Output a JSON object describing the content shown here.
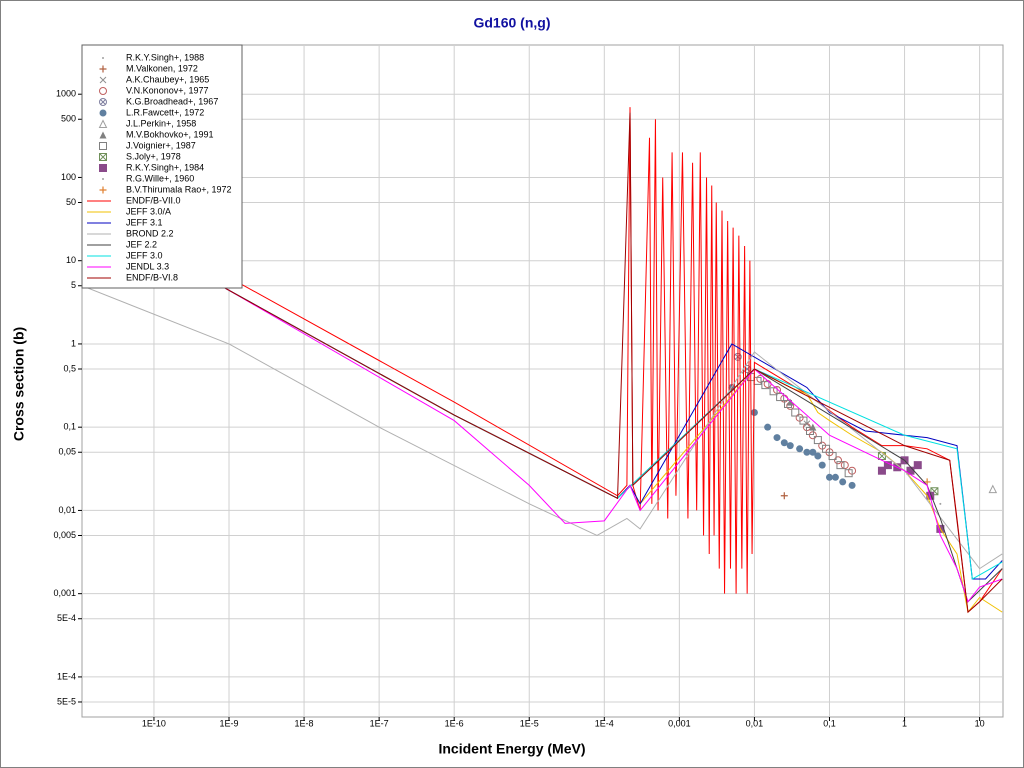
{
  "chart_data": {
    "type": "scatter",
    "title": "Gd160 (n,g)",
    "x_label": "Incident Energy (MeV)",
    "y_label": "Cross section (b)",
    "xscale": "log",
    "yscale": "log",
    "grid": true,
    "legend": "upper left",
    "xlim": [
      1.1e-11,
      20.5
    ],
    "ylim": [
      3.3e-05,
      3900
    ],
    "xticks": [
      {
        "value": 1e-10,
        "label": "1E-10"
      },
      {
        "value": 1e-09,
        "label": "1E-9"
      },
      {
        "value": 1e-08,
        "label": "1E-8"
      },
      {
        "value": 1e-07,
        "label": "1E-7"
      },
      {
        "value": 1e-06,
        "label": "1E-6"
      },
      {
        "value": 1e-05,
        "label": "1E-5"
      },
      {
        "value": 0.0001,
        "label": "1E-4"
      },
      {
        "value": 0.001,
        "label": "0,001"
      },
      {
        "value": 0.01,
        "label": "0,01"
      },
      {
        "value": 0.1,
        "label": "0,1"
      },
      1,
      10
    ],
    "yticks": [
      1000,
      500,
      100,
      50,
      10,
      5,
      1,
      {
        "value": 0.5,
        "label": "0,5"
      },
      {
        "value": 0.1,
        "label": "0,1"
      },
      {
        "value": 0.05,
        "label": "0,05"
      },
      {
        "value": 0.01,
        "label": "0,01"
      },
      {
        "value": 0.005,
        "label": "0,005"
      },
      {
        "value": 0.001,
        "label": "0,001"
      },
      {
        "value": 0.0005,
        "label": "5E-4"
      },
      {
        "value": 0.0001,
        "label": "1E-4"
      },
      {
        "value": 5e-05,
        "label": "5E-5"
      }
    ],
    "series": [
      {
        "name": "R.K.Y.Singh+, 1988",
        "color": "#a0a0a0",
        "marker": "dot",
        "x": [
          0.006,
          0.007,
          0.008
        ],
        "y": [
          0.5,
          0.45,
          0.4
        ]
      },
      {
        "name": "M.Valkonen, 1972",
        "color": "#b06040",
        "marker": "plus",
        "x": [
          0.025
        ],
        "y": [
          0.015
        ]
      },
      {
        "name": "A.K.Chaubey+, 1965",
        "color": "#909090",
        "marker": "cross",
        "x": [
          0.05
        ],
        "y": [
          0.11
        ]
      },
      {
        "name": "V.N.Kononov+, 1977",
        "color": "#c06060",
        "marker": "circle",
        "x": [
          0.012,
          0.015,
          0.02,
          0.025,
          0.03,
          0.04,
          0.05,
          0.06,
          0.08,
          0.1,
          0.13,
          0.16,
          0.2
        ],
        "y": [
          0.38,
          0.33,
          0.28,
          0.22,
          0.18,
          0.13,
          0.1,
          0.08,
          0.06,
          0.05,
          0.04,
          0.035,
          0.03
        ]
      },
      {
        "name": "K.G.Broadhead+, 1967",
        "color": "#8080a0",
        "marker": "circlex",
        "x": [
          0.006,
          0.008
        ],
        "y": [
          0.7,
          0.5
        ]
      },
      {
        "name": "L.R.Fawcett+, 1972",
        "color": "#6080a0",
        "marker": "fcircle",
        "x": [
          0.005,
          0.01,
          0.015,
          0.02,
          0.025,
          0.03,
          0.04,
          0.05,
          0.06,
          0.07,
          0.08,
          0.1,
          0.12,
          0.15,
          0.2
        ],
        "y": [
          0.3,
          0.15,
          0.1,
          0.075,
          0.065,
          0.06,
          0.055,
          0.05,
          0.05,
          0.045,
          0.035,
          0.025,
          0.025,
          0.022,
          0.02
        ]
      },
      {
        "name": "J.L.Perkin+, 1958",
        "color": "#a0a0a0",
        "marker": "triangle",
        "x": [
          15
        ],
        "y": [
          0.018
        ]
      },
      {
        "name": "M.V.Bokhovko+, 1991",
        "color": "#808080",
        "marker": "ftriangle",
        "x": [
          0.03,
          0.06
        ],
        "y": [
          0.2,
          0.1
        ]
      },
      {
        "name": "J.Voignier+, 1987",
        "color": "#808080",
        "marker": "square",
        "x": [
          0.009,
          0.011,
          0.014,
          0.018,
          0.022,
          0.028,
          0.035,
          0.045,
          0.055,
          0.07,
          0.09,
          0.11,
          0.14,
          0.18
        ],
        "y": [
          0.4,
          0.36,
          0.32,
          0.27,
          0.23,
          0.19,
          0.15,
          0.12,
          0.09,
          0.07,
          0.055,
          0.045,
          0.035,
          0.028
        ]
      },
      {
        "name": "S.Joly+, 1978",
        "color": "#70905a",
        "marker": "squarex",
        "x": [
          0.5,
          2.5
        ],
        "y": [
          0.045,
          0.017
        ]
      },
      {
        "name": "R.K.Y.Singh+, 1984",
        "color": "#8a4a8a",
        "marker": "fsquare",
        "x": [
          0.5,
          0.6,
          0.8,
          1,
          1.2,
          1.5,
          2.2,
          3
        ],
        "y": [
          0.03,
          0.035,
          0.033,
          0.04,
          0.03,
          0.035,
          0.015,
          0.006
        ]
      },
      {
        "name": "R.G.Wille+, 1960",
        "color": "#a0a0a0",
        "marker": "dot",
        "x": [
          3
        ],
        "y": [
          0.012
        ]
      },
      {
        "name": "B.V.Thirumala Rao+, 1972",
        "color": "#e08030",
        "marker": "plus",
        "x": [
          2
        ],
        "y": [
          0.022
        ]
      },
      {
        "name": "ENDF/B-VII.0",
        "color": "#ff0000",
        "marker": "line",
        "x": [
          1.1e-11,
          1e-06,
          0.00015,
          0.0002,
          0.00022,
          0.00024,
          0.0003,
          0.0004,
          0.00043,
          0.00048,
          0.00052,
          0.0006,
          0.0007,
          0.0008,
          0.0009,
          0.0011,
          0.0013,
          0.0015,
          0.0017,
          0.0019,
          0.0021,
          0.0023,
          0.0025,
          0.0027,
          0.0029,
          0.0031,
          0.0034,
          0.0037,
          0.004,
          0.0044,
          0.0048,
          0.0052,
          0.0057,
          0.0062,
          0.0068,
          0.0074,
          0.008,
          0.0087,
          0.0093,
          0.01,
          0.05,
          0.2,
          0.5,
          1,
          2,
          4,
          5,
          7,
          10,
          20
        ],
        "y": [
          60,
          0.2,
          0.015,
          0.02,
          700,
          0.02,
          0.01,
          300,
          0.012,
          500,
          0.01,
          100,
          0.008,
          200,
          0.015,
          200,
          0.008,
          150,
          0.01,
          200,
          0.005,
          100,
          0.003,
          80,
          0.005,
          50,
          0.002,
          40,
          0.001,
          30,
          0.002,
          25,
          0.001,
          20,
          0.002,
          15,
          0.001,
          10,
          0.003,
          0.6,
          0.25,
          0.1,
          0.06,
          0.06,
          0.055,
          0.04,
          0.008,
          0.0006,
          0.0008,
          0.002
        ]
      },
      {
        "name": "JEFF 3.0/A",
        "color": "#f0c000",
        "marker": "line",
        "x": [
          1.1e-11,
          1e-09,
          1e-06,
          0.00015,
          0.00022,
          0.0003,
          0.01,
          0.03,
          0.05,
          0.07,
          0.1,
          0.2,
          0.5,
          1,
          2,
          3,
          5,
          7,
          10,
          20
        ],
        "y": [
          44,
          4.4,
          0.14,
          0.014,
          0.02,
          0.012,
          0.5,
          0.3,
          0.25,
          0.15,
          0.12,
          0.08,
          0.05,
          0.03,
          0.015,
          0.006,
          0.003,
          0.0006,
          0.0009,
          0.0006
        ]
      },
      {
        "name": "JEFF 3.1",
        "color": "#0000c0",
        "marker": "line",
        "x": [
          1.1e-11,
          1e-09,
          1e-06,
          0.00015,
          0.00022,
          0.0003,
          0.005,
          0.05,
          0.1,
          0.3,
          1,
          2,
          5,
          8,
          12,
          20
        ],
        "y": [
          44,
          4.4,
          0.14,
          0.014,
          0.02,
          0.012,
          1,
          0.3,
          0.15,
          0.09,
          0.08,
          0.075,
          0.06,
          0.0015,
          0.0015,
          0.0025
        ]
      },
      {
        "name": "BROND 2.2",
        "color": "#b0b0b0",
        "marker": "line",
        "x": [
          1.1e-11,
          1e-09,
          1e-07,
          1e-05,
          8e-05,
          0.0002,
          0.0003,
          0.01,
          1,
          10,
          20
        ],
        "y": [
          5,
          1,
          0.1,
          0.012,
          0.005,
          0.008,
          0.006,
          0.8,
          0.03,
          0.002,
          0.003
        ]
      },
      {
        "name": "JEF 2.2",
        "color": "#404040",
        "marker": "line",
        "x": [
          1.1e-11,
          1e-09,
          1e-06,
          0.00015,
          0.01,
          1,
          2,
          3,
          7,
          20
        ],
        "y": [
          44,
          4.4,
          0.14,
          0.014,
          0.5,
          0.04,
          0.02,
          0.008,
          0.0008,
          0.002
        ]
      },
      {
        "name": "JEFF 3.0",
        "color": "#00e0e0",
        "marker": "line",
        "x": [
          1.1e-11,
          1e-09,
          1e-06,
          0.00015,
          0.01,
          1,
          5,
          8,
          20
        ],
        "y": [
          44,
          4.4,
          0.14,
          0.014,
          0.5,
          0.08,
          0.055,
          0.0015,
          0.0024
        ]
      },
      {
        "name": "JENDL 3.3",
        "color": "#ff00ff",
        "marker": "line",
        "x": [
          1.1e-11,
          1e-09,
          1e-06,
          1e-05,
          3e-05,
          0.0001,
          0.00022,
          0.0003,
          0.01,
          0.1,
          0.5,
          1,
          2,
          3,
          5,
          7,
          10,
          20
        ],
        "y": [
          44,
          4.4,
          0.12,
          0.02,
          0.007,
          0.0075,
          0.02,
          0.01,
          0.5,
          0.08,
          0.04,
          0.03,
          0.02,
          0.005,
          0.002,
          0.0008,
          0.0012,
          0.0015
        ]
      },
      {
        "name": "ENDF/B-VI.8",
        "color": "#a00000",
        "marker": "line",
        "x": [
          1.1e-11,
          1e-09,
          1e-06,
          0.00015,
          0.00022,
          0.00024,
          0.01,
          1,
          4,
          7,
          10,
          20
        ],
        "y": [
          44,
          4.4,
          0.14,
          0.014,
          600,
          0.02,
          0.5,
          0.06,
          0.04,
          0.0006,
          0.0008,
          0.0015
        ]
      }
    ]
  }
}
